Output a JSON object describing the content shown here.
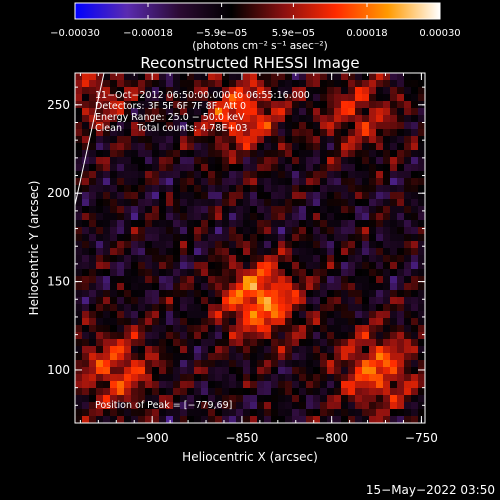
{
  "chart_data": {
    "type": "heatmap",
    "title": "Reconstructed RHESSI Image",
    "xlabel": "Heliocentric X (arcsec)",
    "ylabel": "Heliocentric Y (arcsec)",
    "xlim": [
      -943,
      -748
    ],
    "ylim": [
      70,
      268
    ],
    "xticks": [
      {
        "value": -900,
        "label": "−900"
      },
      {
        "value": -850,
        "label": "−850"
      },
      {
        "value": -800,
        "label": "−800"
      },
      {
        "value": -750,
        "label": "−750"
      }
    ],
    "yticks": [
      {
        "value": 100,
        "label": "100"
      },
      {
        "value": 150,
        "label": "150"
      },
      {
        "value": 200,
        "label": "200"
      },
      {
        "value": 250,
        "label": "250"
      }
    ],
    "colorbar": {
      "min": -0.0003,
      "max": 0.0003,
      "ticks": [
        {
          "value": -0.0003,
          "label": "−0.00030",
          "row": "bottom"
        },
        {
          "value": -0.00018,
          "label": "−0.00018",
          "row": "bottom"
        },
        {
          "value": -5.9e-05,
          "label": "−5.9e−05",
          "row": "bottom"
        },
        {
          "value": 5.9e-05,
          "label": "5.9e−05",
          "row": "bottom"
        },
        {
          "value": 0.00018,
          "label": "0.00018",
          "row": "bottom"
        },
        {
          "value": 0.0003,
          "label": "0.00030",
          "row": "bottom"
        }
      ],
      "units_label": "(photons cm⁻² s⁻¹ asec⁻²)"
    },
    "annotations": {
      "time_range": "11−Oct−2012 06:50:00.000 to 06:55:16.000",
      "detectors": "Detectors: 3F 5F 6F 7F 8F, Att 0",
      "energy_range": "Energy Range: 25.0 − 50.0 keV",
      "method_counts": "Clean     Total counts: 4.78E+03",
      "peak_position": "Position of Peak = [−779,69]"
    },
    "bright_sources": [
      {
        "x": -840,
        "y": 140,
        "level": 1.0
      },
      {
        "x": -850,
        "y": 245,
        "level": 0.75
      },
      {
        "x": -785,
        "y": 245,
        "level": 0.55
      },
      {
        "x": -775,
        "y": 100,
        "level": 0.8
      },
      {
        "x": -920,
        "y": 100,
        "level": 0.7
      },
      {
        "x": -930,
        "y": 255,
        "level": 0.45
      }
    ],
    "colormap": [
      "#0000ff",
      "#5a2bb0",
      "#2b0a33",
      "#000000",
      "#8a1010",
      "#ff2a00",
      "#ff9a00",
      "#ffffff"
    ]
  },
  "footer": {
    "timestamp": "15−May−2022 03:50"
  }
}
